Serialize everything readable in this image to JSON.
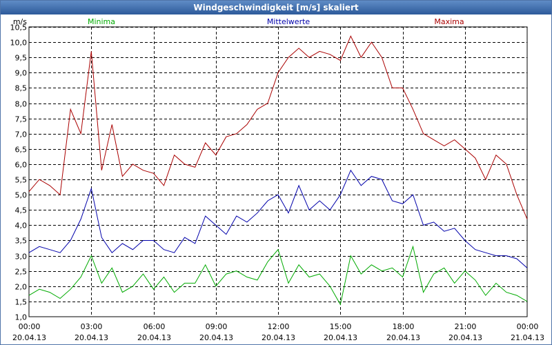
{
  "window": {
    "title": "Windgeschwindigkeit [m/s] skaliert"
  },
  "chart_data": {
    "type": "line",
    "title": "Windgeschwindigkeit [m/s] skaliert",
    "ylabel": "m/s",
    "xlabel": "",
    "ylim": [
      1.0,
      10.5
    ],
    "y_ticks": [
      "1,0",
      "1,5",
      "2,0",
      "2,5",
      "3,0",
      "3,5",
      "4,0",
      "4,5",
      "5,0",
      "5,5",
      "6,0",
      "6,5",
      "7,0",
      "7,5",
      "8,0",
      "8,5",
      "9,0",
      "9,5",
      "10,0",
      "10,5"
    ],
    "x_ticks": [
      {
        "time": "00:00",
        "date": "20.04.13"
      },
      {
        "time": "03:00",
        "date": "20.04.13"
      },
      {
        "time": "06:00",
        "date": "20.04.13"
      },
      {
        "time": "09:00",
        "date": "20.04.13"
      },
      {
        "time": "12:00",
        "date": "20.04.13"
      },
      {
        "time": "15:00",
        "date": "20.04.13"
      },
      {
        "time": "18:00",
        "date": "20.04.13"
      },
      {
        "time": "21:00",
        "date": "20.04.13"
      },
      {
        "time": "00:00",
        "date": "21.04.13"
      }
    ],
    "grid": true,
    "x_unit": "hours since 20.04.13 00:00",
    "series": [
      {
        "name": "Minima",
        "color": "#00aa00",
        "x": [
          0,
          0.5,
          1,
          1.5,
          2,
          2.5,
          3,
          3.5,
          4,
          4.5,
          5,
          5.5,
          6,
          6.5,
          7,
          7.5,
          8,
          8.5,
          9,
          9.5,
          10,
          10.5,
          11,
          11.5,
          12,
          12.5,
          13,
          13.5,
          14,
          14.5,
          15,
          15.5,
          16,
          16.5,
          17,
          17.5,
          18,
          18.5,
          19,
          19.5,
          20,
          20.5,
          21,
          21.5,
          22,
          22.5,
          23,
          23.5,
          24
        ],
        "values": [
          1.7,
          1.9,
          1.8,
          1.6,
          1.9,
          2.3,
          3.0,
          2.1,
          2.6,
          1.8,
          2.0,
          2.4,
          1.9,
          2.3,
          1.8,
          2.1,
          2.1,
          2.7,
          2.0,
          2.4,
          2.5,
          2.3,
          2.2,
          2.8,
          3.2,
          2.1,
          2.7,
          2.3,
          2.4,
          2.0,
          1.4,
          3.0,
          2.4,
          2.7,
          2.5,
          2.6,
          2.3,
          3.3,
          1.8,
          2.4,
          2.6,
          2.1,
          2.5,
          2.2,
          1.7,
          2.1,
          1.8,
          1.7,
          1.5
        ]
      },
      {
        "name": "Mittelwerte",
        "color": "#0000aa",
        "x": [
          0,
          0.5,
          1,
          1.5,
          2,
          2.5,
          3,
          3.5,
          4,
          4.5,
          5,
          5.5,
          6,
          6.5,
          7,
          7.5,
          8,
          8.5,
          9,
          9.5,
          10,
          10.5,
          11,
          11.5,
          12,
          12.5,
          13,
          13.5,
          14,
          14.5,
          15,
          15.5,
          16,
          16.5,
          17,
          17.5,
          18,
          18.5,
          19,
          19.5,
          20,
          20.5,
          21,
          21.5,
          22,
          22.5,
          23,
          23.5,
          24
        ],
        "values": [
          3.1,
          3.3,
          3.2,
          3.1,
          3.5,
          4.2,
          5.2,
          3.6,
          3.1,
          3.4,
          3.2,
          3.5,
          3.5,
          3.2,
          3.1,
          3.6,
          3.4,
          4.3,
          4.0,
          3.7,
          4.3,
          4.1,
          4.4,
          4.8,
          5.0,
          4.4,
          5.3,
          4.5,
          4.8,
          4.5,
          5.0,
          5.8,
          5.3,
          5.6,
          5.5,
          4.8,
          4.7,
          5.0,
          4.0,
          4.1,
          3.8,
          3.9,
          3.5,
          3.2,
          3.1,
          3.0,
          3.0,
          2.9,
          2.6
        ]
      },
      {
        "name": "Maxima",
        "color": "#aa0000",
        "x": [
          0,
          0.5,
          1,
          1.5,
          2,
          2.5,
          3,
          3.5,
          4,
          4.5,
          5,
          5.5,
          6,
          6.5,
          7,
          7.5,
          8,
          8.5,
          9,
          9.5,
          10,
          10.5,
          11,
          11.5,
          12,
          12.5,
          13,
          13.5,
          14,
          14.5,
          15,
          15.5,
          16,
          16.5,
          17,
          17.5,
          18,
          18.5,
          19,
          19.5,
          20,
          20.5,
          21,
          21.5,
          22,
          22.5,
          23,
          23.5,
          24
        ],
        "values": [
          5.1,
          5.5,
          5.3,
          5.0,
          7.8,
          7.0,
          9.7,
          5.8,
          7.3,
          5.6,
          6.0,
          5.8,
          5.7,
          5.3,
          6.3,
          6.0,
          5.9,
          6.7,
          6.3,
          6.9,
          7.0,
          7.3,
          7.8,
          8.0,
          9.0,
          9.5,
          9.8,
          9.5,
          9.7,
          9.6,
          9.4,
          10.2,
          9.5,
          10.0,
          9.5,
          8.5,
          8.5,
          7.8,
          7.0,
          6.8,
          6.6,
          6.8,
          6.5,
          6.2,
          5.5,
          6.3,
          6.0,
          5.0,
          4.2
        ]
      }
    ]
  }
}
